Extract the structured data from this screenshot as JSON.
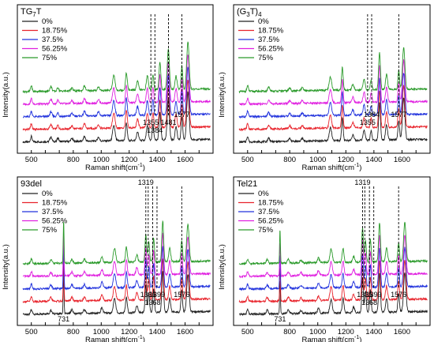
{
  "figure": {
    "layout": "2x2 grid of stacked Raman spectra"
  },
  "chart_data": [
    {
      "type": "line",
      "title": "TG",
      "title_sub": "7",
      "title_tail": "T",
      "xlabel": "Raman shift(cm",
      "xlabel_sup": "-1",
      "xlabel_tail": ")",
      "ylabel": "Intensity(a.u.)",
      "xlim": [
        400,
        1800
      ],
      "xticks": [
        500,
        600,
        700,
        800,
        900,
        1000,
        1100,
        1200,
        1300,
        1400,
        1500,
        1600,
        1700
      ],
      "xtick_labels": [
        "500",
        "",
        "",
        "800",
        "",
        "1000",
        "",
        "1200",
        "",
        "1400",
        "",
        "1600",
        ""
      ],
      "legend": {
        "placement": "top-left",
        "entries": [
          "0%",
          "18.75%",
          "37.5%",
          "56.25%",
          "75%"
        ]
      },
      "series_colors": [
        "#222222",
        "#e8232b",
        "#2233dd",
        "#e020e0",
        "#2a9a2a"
      ],
      "peaks": [
        {
          "x": 500,
          "h": 0.12,
          "w": 8
        },
        {
          "x": 640,
          "h": 0.1,
          "w": 10
        },
        {
          "x": 690,
          "h": 0.08,
          "w": 8
        },
        {
          "x": 790,
          "h": 0.06,
          "w": 10
        },
        {
          "x": 880,
          "h": 0.1,
          "w": 10
        },
        {
          "x": 980,
          "h": 0.08,
          "w": 10
        },
        {
          "x": 1090,
          "h": 0.32,
          "w": 12
        },
        {
          "x": 1180,
          "h": 0.36,
          "w": 9
        },
        {
          "x": 1260,
          "h": 0.18,
          "w": 10
        },
        {
          "x": 1330,
          "h": 0.3,
          "w": 10
        },
        {
          "x": 1370,
          "h": 0.32,
          "w": 8
        },
        {
          "x": 1420,
          "h": 0.58,
          "w": 9
        },
        {
          "x": 1480,
          "h": 0.85,
          "w": 11
        },
        {
          "x": 1535,
          "h": 0.28,
          "w": 10
        },
        {
          "x": 1577,
          "h": 0.5,
          "w": 8
        },
        {
          "x": 1620,
          "h": 1.0,
          "w": 12
        }
      ],
      "peak_labels": [
        {
          "x": 1355,
          "text": "1355",
          "row": 1
        },
        {
          "x": 1384,
          "text": "1384",
          "row": 2
        },
        {
          "x": 1481,
          "text": "1481",
          "row": 1
        },
        {
          "x": 1577,
          "text": "1577",
          "row": 0
        }
      ],
      "dashed_lines": [
        1355,
        1384,
        1481,
        1577
      ]
    },
    {
      "type": "line",
      "title": "(G",
      "title_sub": "3",
      "title_tail": "T)",
      "title_tail_sub": "4",
      "xlabel": "Raman shift(cm",
      "xlabel_sup": "-1",
      "xlabel_tail": ")",
      "ylabel": "Intensity(a.u.)",
      "xlim": [
        400,
        1800
      ],
      "xticks": [
        500,
        600,
        700,
        800,
        900,
        1000,
        1100,
        1200,
        1300,
        1400,
        1500,
        1600,
        1700
      ],
      "xtick_labels": [
        "500",
        "",
        "",
        "800",
        "",
        "1000",
        "",
        "1200",
        "",
        "1400",
        "",
        "1600",
        ""
      ],
      "legend": {
        "placement": "top-left",
        "entries": [
          "0%",
          "18.75%",
          "37.5%",
          "56.25%",
          "75%"
        ]
      },
      "series_colors": [
        "#222222",
        "#e8232b",
        "#2233dd",
        "#e020e0",
        "#2a9a2a"
      ],
      "peaks": [
        {
          "x": 500,
          "h": 0.12,
          "w": 8
        },
        {
          "x": 650,
          "h": 0.08,
          "w": 10
        },
        {
          "x": 800,
          "h": 0.06,
          "w": 10
        },
        {
          "x": 890,
          "h": 0.06,
          "w": 10
        },
        {
          "x": 1090,
          "h": 0.28,
          "w": 12
        },
        {
          "x": 1175,
          "h": 0.48,
          "w": 8
        },
        {
          "x": 1250,
          "h": 0.12,
          "w": 10
        },
        {
          "x": 1330,
          "h": 0.22,
          "w": 10
        },
        {
          "x": 1380,
          "h": 0.2,
          "w": 8
        },
        {
          "x": 1440,
          "h": 0.78,
          "w": 9
        },
        {
          "x": 1490,
          "h": 0.32,
          "w": 10
        },
        {
          "x": 1577,
          "h": 0.4,
          "w": 8
        },
        {
          "x": 1612,
          "h": 0.88,
          "w": 12
        }
      ],
      "peak_labels": [
        {
          "x": 1355,
          "text": "1355",
          "row": 1
        },
        {
          "x": 1384,
          "text": "1384",
          "row": 0
        },
        {
          "x": 1577,
          "text": "1577",
          "row": 0
        }
      ],
      "dashed_lines": [
        1355,
        1384,
        1577
      ]
    },
    {
      "type": "line",
      "title": "93del",
      "xlabel": "Raman shift(cm",
      "xlabel_sup": "-1",
      "xlabel_tail": ")",
      "ylabel": "Intensity(a.u.)",
      "xlim": [
        400,
        1800
      ],
      "xticks": [
        500,
        600,
        700,
        800,
        900,
        1000,
        1100,
        1200,
        1300,
        1400,
        1500,
        1600,
        1700
      ],
      "xtick_labels": [
        "500",
        "",
        "",
        "800",
        "",
        "1000",
        "",
        "1200",
        "",
        "1400",
        "",
        "1600",
        ""
      ],
      "legend": {
        "placement": "top-left",
        "entries": [
          "0%",
          "18.75%",
          "37.5%",
          "56.25%",
          "75%"
        ]
      },
      "series_colors": [
        "#222222",
        "#e8232b",
        "#2233dd",
        "#e020e0",
        "#2a9a2a"
      ],
      "peaks": [
        {
          "x": 500,
          "h": 0.1,
          "w": 8
        },
        {
          "x": 640,
          "h": 0.08,
          "w": 10
        },
        {
          "x": 731,
          "h": 0.92,
          "w": 4
        },
        {
          "x": 790,
          "h": 0.08,
          "w": 10
        },
        {
          "x": 880,
          "h": 0.08,
          "w": 10
        },
        {
          "x": 1005,
          "h": 0.12,
          "w": 10
        },
        {
          "x": 1095,
          "h": 0.3,
          "w": 12
        },
        {
          "x": 1180,
          "h": 0.32,
          "w": 9
        },
        {
          "x": 1255,
          "h": 0.15,
          "w": 10
        },
        {
          "x": 1319,
          "h": 0.58,
          "w": 8
        },
        {
          "x": 1340,
          "h": 0.42,
          "w": 8
        },
        {
          "x": 1375,
          "h": 0.5,
          "w": 8
        },
        {
          "x": 1440,
          "h": 0.86,
          "w": 9
        },
        {
          "x": 1490,
          "h": 0.28,
          "w": 10
        },
        {
          "x": 1576,
          "h": 0.45,
          "w": 8
        },
        {
          "x": 1620,
          "h": 0.78,
          "w": 12
        }
      ],
      "peak_labels": [
        {
          "x": 1319,
          "text": "1319",
          "row": -1
        },
        {
          "x": 1336,
          "text": "1336",
          "row": 1
        },
        {
          "x": 1368,
          "text": "1368",
          "row": 2
        },
        {
          "x": 1399,
          "text": "1399",
          "row": 1
        },
        {
          "x": 1576,
          "text": "1576",
          "row": 1
        },
        {
          "x": 731,
          "text": "731",
          "row": 3
        }
      ],
      "dashed_lines": [
        1319,
        1336,
        1368,
        1399,
        1576
      ]
    },
    {
      "type": "line",
      "title": "Tel21",
      "xlabel": "Raman shift(cm",
      "xlabel_sup": "-1",
      "xlabel_tail": ")",
      "ylabel": "Intensity(a.u.)",
      "xlim": [
        400,
        1800
      ],
      "xticks": [
        500,
        600,
        700,
        800,
        900,
        1000,
        1100,
        1200,
        1300,
        1400,
        1500,
        1600,
        1700
      ],
      "xtick_labels": [
        "500",
        "",
        "",
        "800",
        "",
        "1000",
        "",
        "1200",
        "",
        "1400",
        "",
        "1600",
        ""
      ],
      "legend": {
        "placement": "top-left",
        "entries": [
          "0%",
          "18.75%",
          "37.5%",
          "56.25%",
          "75%"
        ]
      },
      "series_colors": [
        "#222222",
        "#e8232b",
        "#2233dd",
        "#e020e0",
        "#2a9a2a"
      ],
      "peaks": [
        {
          "x": 500,
          "h": 0.1,
          "w": 8
        },
        {
          "x": 640,
          "h": 0.08,
          "w": 10
        },
        {
          "x": 731,
          "h": 0.72,
          "w": 4
        },
        {
          "x": 790,
          "h": 0.08,
          "w": 10
        },
        {
          "x": 880,
          "h": 0.06,
          "w": 10
        },
        {
          "x": 1005,
          "h": 0.1,
          "w": 10
        },
        {
          "x": 1095,
          "h": 0.28,
          "w": 12
        },
        {
          "x": 1180,
          "h": 0.3,
          "w": 9
        },
        {
          "x": 1255,
          "h": 0.12,
          "w": 10
        },
        {
          "x": 1319,
          "h": 0.72,
          "w": 8
        },
        {
          "x": 1340,
          "h": 0.45,
          "w": 8
        },
        {
          "x": 1375,
          "h": 0.48,
          "w": 8
        },
        {
          "x": 1440,
          "h": 0.82,
          "w": 9
        },
        {
          "x": 1490,
          "h": 0.28,
          "w": 10
        },
        {
          "x": 1576,
          "h": 0.4,
          "w": 8
        },
        {
          "x": 1620,
          "h": 0.82,
          "w": 12
        }
      ],
      "peak_labels": [
        {
          "x": 1319,
          "text": "1319",
          "row": -1
        },
        {
          "x": 1335,
          "text": "1335",
          "row": 1
        },
        {
          "x": 1368,
          "text": "1368",
          "row": 2
        },
        {
          "x": 1399,
          "text": "1399",
          "row": 1
        },
        {
          "x": 1576,
          "text": "1576",
          "row": 1
        },
        {
          "x": 731,
          "text": "731",
          "row": 3
        }
      ],
      "dashed_lines": [
        1319,
        1335,
        1368,
        1399,
        1576
      ]
    }
  ]
}
